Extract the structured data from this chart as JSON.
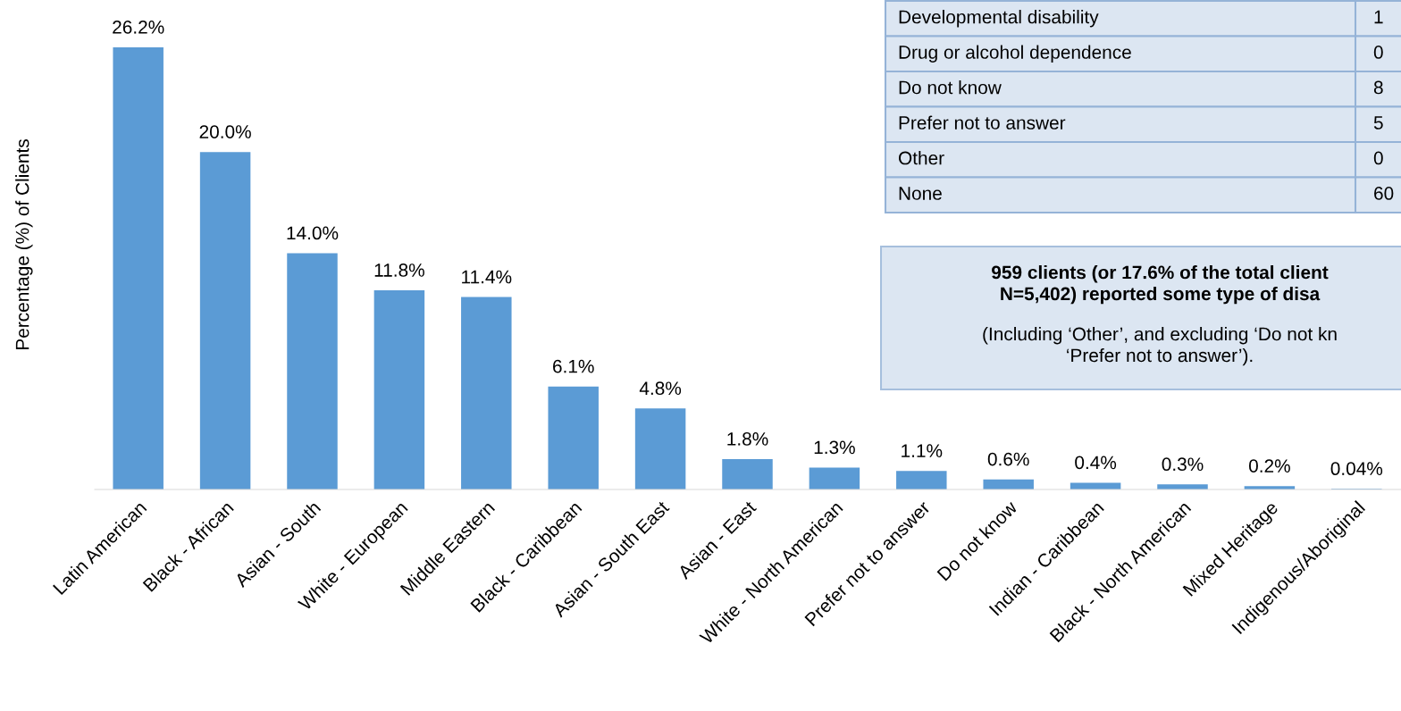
{
  "chart_data": [
    {
      "type": "bar",
      "ylabel": "Percentage (%) of Clients",
      "color": "#5b9bd5",
      "tick_labels": "x",
      "grid": false,
      "categories": [
        "Latin American",
        "Black - African",
        "Asian - South",
        "White - European",
        "Middle Eastern",
        "Black - Caribbean",
        "Asian - South East",
        "Asian - East",
        "White - North American",
        "Prefer not to answer",
        "Do not know",
        "Indian - Caribbean",
        "Black - North American",
        "Mixed Heritage",
        "Indigenous/Aboriginal"
      ],
      "values": [
        26.2,
        20.0,
        14.0,
        11.8,
        11.4,
        6.1,
        4.8,
        1.8,
        1.3,
        1.1,
        0.6,
        0.4,
        0.3,
        0.2,
        0.04
      ],
      "value_labels": [
        "26.2%",
        "20.0%",
        "14.0%",
        "11.8%",
        "11.4%",
        "6.1%",
        "4.8%",
        "1.8%",
        "1.3%",
        "1.1%",
        "0.6%",
        "0.4%",
        "0.3%",
        "0.2%",
        "0.04%"
      ]
    },
    {
      "type": "other",
      "annotations": [
        "Developmental disability",
        "1",
        "Drug or alcohol dependence",
        "0",
        "Do not know",
        "8",
        "Prefer not to answer",
        "5",
        "Other",
        "0",
        "None",
        "60",
        "959 clients (or 17.6% of the total client\nN=5,402) reported some type of disa",
        "(Including ‘Other’, and excluding ‘Do not kn\n‘Prefer not to answer’)."
      ]
    }
  ]
}
